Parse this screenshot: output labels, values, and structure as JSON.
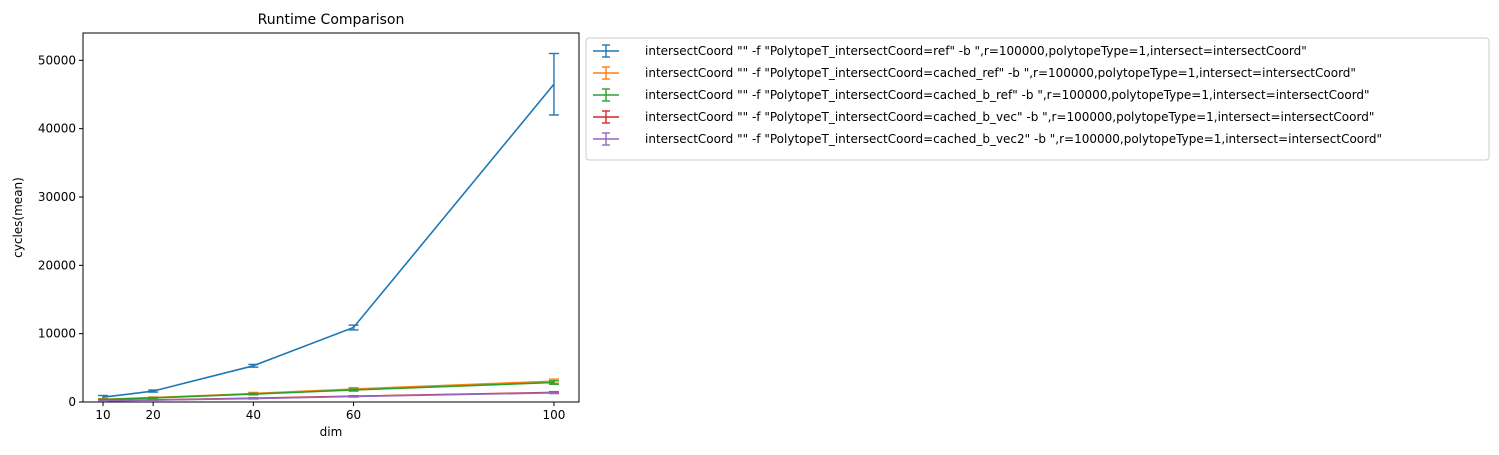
{
  "chart_data": {
    "type": "line",
    "title": "Runtime Comparison",
    "xlabel": "dim",
    "ylabel": "cycles(mean)",
    "x": [
      10,
      20,
      40,
      60,
      100
    ],
    "xticks": [
      10,
      20,
      40,
      60,
      100
    ],
    "yticks": [
      0,
      10000,
      20000,
      30000,
      40000,
      50000
    ],
    "xlim": [
      6,
      105
    ],
    "ylim": [
      0,
      54000
    ],
    "grid": false,
    "legend_position": "outside-upper-right",
    "series": [
      {
        "name": "intersectCoord \"\" -f \"PolytopeT_intersectCoord=ref\" -b \",r=100000,polytopeType=1,intersect=intersectCoord\"",
        "color": "#1f77b4",
        "values": [
          700,
          1600,
          5300,
          10900,
          46500
        ],
        "errors": [
          250,
          150,
          200,
          350,
          4500
        ]
      },
      {
        "name": "intersectCoord \"\" -f \"PolytopeT_intersectCoord=cached_ref\" -b \",r=100000,polytopeType=1,intersect=intersectCoord\"",
        "color": "#ff7f0e",
        "values": [
          400,
          650,
          1250,
          1900,
          3050
        ],
        "errors": [
          80,
          80,
          150,
          200,
          300
        ]
      },
      {
        "name": "intersectCoord \"\" -f \"PolytopeT_intersectCoord=cached_b_ref\" -b \",r=100000,polytopeType=1,intersect=intersectCoord\"",
        "color": "#2ca02c",
        "values": [
          350,
          600,
          1150,
          1750,
          2850
        ],
        "errors": [
          60,
          60,
          100,
          150,
          250
        ]
      },
      {
        "name": "intersectCoord \"\" -f \"PolytopeT_intersectCoord=cached_b_vec\" -b \",r=100000,polytopeType=1,intersect=intersectCoord\"",
        "color": "#d62728",
        "values": [
          200,
          300,
          550,
          850,
          1400
        ],
        "errors": [
          40,
          40,
          60,
          80,
          120
        ]
      },
      {
        "name": "intersectCoord \"\" -f \"PolytopeT_intersectCoord=cached_b_vec2\" -b \",r=100000,polytopeType=1,intersect=intersectCoord\"",
        "color": "#9467bd",
        "values": [
          180,
          280,
          500,
          800,
          1350
        ],
        "errors": [
          40,
          40,
          60,
          80,
          120
        ]
      }
    ]
  }
}
